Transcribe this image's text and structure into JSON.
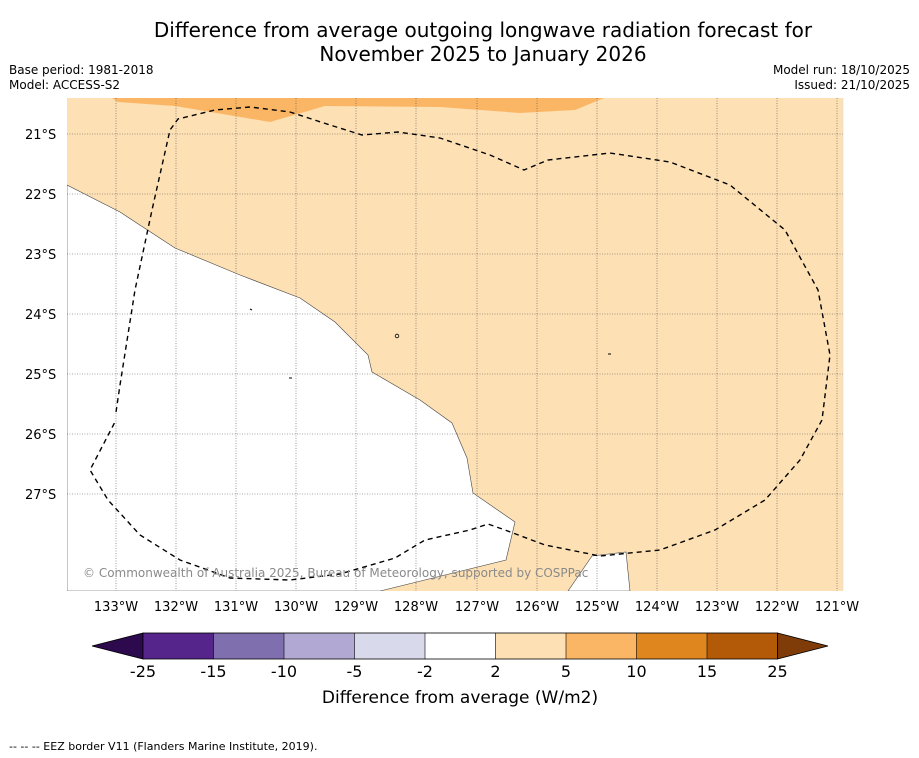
{
  "header": {
    "title_line1": "Difference from average outgoing longwave radiation forecast for",
    "title_line2": "November 2025 to January 2026",
    "base_period": "Base period: 1981-2018",
    "model": "Model: ACCESS-S2",
    "model_run": "Model run: 18/10/2025",
    "issued": "Issued: 21/10/2025"
  },
  "map": {
    "lat_labels": [
      "21°S",
      "22°S",
      "23°S",
      "24°S",
      "25°S",
      "26°S",
      "27°S"
    ],
    "lon_labels": [
      "133°W",
      "132°W",
      "131°W",
      "130°W",
      "129°W",
      "128°W",
      "127°W",
      "126°W",
      "125°W",
      "124°W",
      "123°W",
      "122°W",
      "121°W"
    ],
    "copyright": "© Commonwealth of Australia 2025, Bureau of Meteorology, supported by COSPPac",
    "fill_colors": {
      "light_orange": "#fde0b4",
      "orange": "#fbb665",
      "white": "#ffffff"
    }
  },
  "colorbar": {
    "label": "Difference from average (W/m2)",
    "ticks": [
      "-25",
      "-15",
      "-10",
      "-5",
      "-2",
      "2",
      "5",
      "10",
      "15",
      "25"
    ],
    "colors": [
      "#2d0a4e",
      "#55258b",
      "#7f6fae",
      "#b1a9d3",
      "#d9d9ec",
      "#ffffff",
      "#fde0b4",
      "#fbb665",
      "#e0861e",
      "#b25a07",
      "#7f3b08"
    ]
  },
  "footer": {
    "legend": "--  --  -- EEZ border V11 (Flanders Marine Institute, 2019)."
  }
}
